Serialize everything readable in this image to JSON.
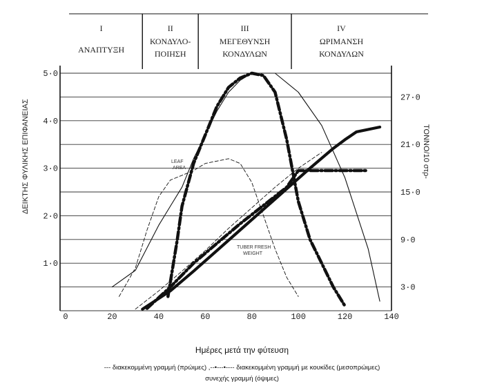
{
  "stages": [
    {
      "roman": "I",
      "label_lines": [
        "ΑΝΑΠΤΥΞΗ"
      ]
    },
    {
      "roman": "II",
      "label_lines": [
        "ΚΟΝΔΥΛΟ-",
        "ΠΟΙΗΣΗ"
      ]
    },
    {
      "roman": "III",
      "label_lines": [
        "ΜΕΓΕΘΥΝΣΗ",
        "ΚΟΝΔΥΛΩΝ"
      ]
    },
    {
      "roman": "IV",
      "label_lines": [
        "ΩΡΙΜΑΝΣΗ",
        "ΚΟΝΔΥΛΩΝ"
      ]
    }
  ],
  "annotations": {
    "leaf_area_line1": "LEAF",
    "leaf_area_line2": "AREA",
    "tuber_line1": "TUBER FRESH",
    "tuber_line2": "WEIGHT"
  },
  "caption": {
    "xlabel": "Ημέρες μετά την φύτευση",
    "legend_line1": "--- διακεκομμένη γραμμή (πρώιμες) ,--•---•---- διακεκομμένη γραμμή με κουκίδες (μεσοπρώιμες)",
    "legend_line2": "συνεχής γραμμή (όψιμες)"
  },
  "colors": {
    "ink": "#111111",
    "grid": "#333333"
  },
  "chart_data": {
    "type": "line",
    "xlabel": "Ημέρες μετά την φύτευση",
    "ylabel": "ΔΕΙΚΤΗΣ ΦΥΛΙΚΗΣ ΕΠΙΦΑΝΕΙΑΣ",
    "y2label": "ΤΟΝΝΟ/10 στρ-",
    "x_ticks": [
      "0",
      "20",
      "40",
      "60",
      "80",
      "100",
      "120",
      "140"
    ],
    "y_ticks": [
      "1·0",
      "2·0",
      "3·0",
      "4·0",
      "5·0"
    ],
    "y2_ticks": [
      "3·0",
      "9·0",
      "15·0",
      "21·0",
      "27·0"
    ],
    "xlim": [
      0,
      140
    ],
    "ylim": [
      0,
      5
    ],
    "y2lim": [
      0,
      30
    ],
    "grid": true,
    "stage_boundaries_days": [
      33,
      57,
      97
    ],
    "series": [
      {
        "name": "διακεκομμένη γραμμή (πρώιμες)",
        "kind": "leaf_area",
        "axis": "left",
        "style": "dashed",
        "x": [
          23,
          30,
          35,
          40,
          45,
          50,
          55,
          60,
          65,
          70,
          75,
          80,
          85,
          90,
          95,
          100
        ],
        "y": [
          0.3,
          0.9,
          1.7,
          2.4,
          2.75,
          2.85,
          2.95,
          3.1,
          3.15,
          3.2,
          3.1,
          2.7,
          2.0,
          1.3,
          0.7,
          0.3
        ]
      },
      {
        "name": "διακεκομμένη γραμμή (πρώιμες)",
        "kind": "tuber_weight",
        "axis": "right",
        "style": "dashed",
        "x": [
          30,
          40,
          50,
          60,
          70,
          80,
          90,
          100,
          110
        ],
        "y": [
          0.2,
          2.5,
          5.0,
          7.6,
          10.4,
          13.0,
          15.6,
          18.0,
          20.0
        ]
      },
      {
        "name": "διακεκομμένη γραμμή με κουκίδες (μεσοπρώιμες)",
        "kind": "leaf_area",
        "axis": "left",
        "style": "dash-dot",
        "x": [
          44,
          48,
          50,
          55,
          60,
          65,
          70,
          75,
          80,
          85,
          90,
          95,
          100,
          105,
          110,
          115,
          120
        ],
        "y": [
          0.3,
          1.5,
          2.2,
          3.1,
          3.7,
          4.3,
          4.7,
          4.9,
          5.0,
          4.95,
          4.6,
          3.6,
          2.3,
          1.5,
          1.0,
          0.5,
          0.1
        ]
      },
      {
        "name": "διακεκομμένη γραμμή με κουκίδες (μεσοπρώιμες)",
        "kind": "tuber_weight",
        "axis": "right",
        "style": "dash-dot",
        "x": [
          35,
          45,
          55,
          65,
          75,
          85,
          95,
          100,
          110,
          120,
          130
        ],
        "y": [
          0.3,
          3.0,
          6.0,
          8.5,
          11.0,
          13.3,
          15.6,
          17.7,
          17.7,
          17.7,
          17.7
        ]
      },
      {
        "name": "συνεχής γραμμή (όψιμες)",
        "kind": "leaf_area",
        "axis": "left",
        "style": "solid",
        "x": [
          20,
          30,
          40,
          45,
          50,
          55,
          60,
          65,
          70,
          75,
          80,
          90,
          100,
          110,
          120,
          130,
          135
        ],
        "y": [
          0.5,
          0.85,
          1.8,
          2.2,
          2.6,
          3.2,
          3.7,
          4.2,
          4.6,
          4.85,
          5.0,
          5.0,
          4.6,
          3.9,
          2.8,
          1.3,
          0.2
        ]
      },
      {
        "name": "συνεχής γραμμή (όψιμες)",
        "kind": "tuber_weight",
        "axis": "right",
        "style": "solid",
        "x": [
          33,
          45,
          55,
          65,
          75,
          85,
          95,
          105,
          115,
          120,
          125,
          135
        ],
        "y": [
          0.2,
          2.5,
          5.0,
          7.6,
          10.2,
          12.8,
          15.4,
          18.0,
          20.5,
          21.6,
          22.6,
          23.2
        ]
      }
    ]
  }
}
